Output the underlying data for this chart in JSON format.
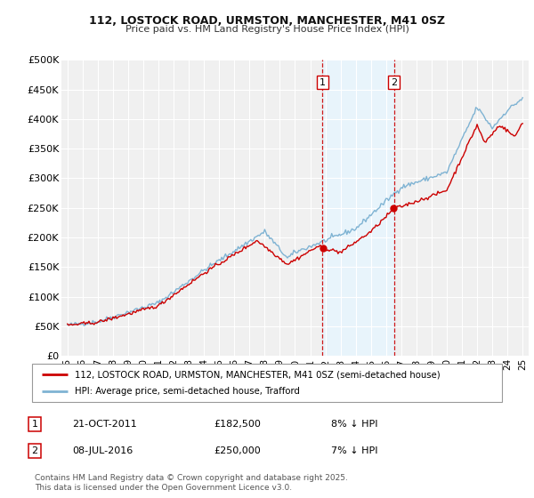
{
  "title_line1": "112, LOSTOCK ROAD, URMSTON, MANCHESTER, M41 0SZ",
  "title_line2": "Price paid vs. HM Land Registry's House Price Index (HPI)",
  "ylim": [
    0,
    500000
  ],
  "yticks": [
    0,
    50000,
    100000,
    150000,
    200000,
    250000,
    300000,
    350000,
    400000,
    450000,
    500000
  ],
  "ytick_labels": [
    "£0",
    "£50K",
    "£100K",
    "£150K",
    "£200K",
    "£250K",
    "£300K",
    "£350K",
    "£400K",
    "£450K",
    "£500K"
  ],
  "xlim_start": 1994.6,
  "xlim_end": 2025.4,
  "xticks": [
    1995,
    1996,
    1997,
    1998,
    1999,
    2000,
    2001,
    2002,
    2003,
    2004,
    2005,
    2006,
    2007,
    2008,
    2009,
    2010,
    2011,
    2012,
    2013,
    2014,
    2015,
    2016,
    2017,
    2018,
    2019,
    2020,
    2021,
    2022,
    2023,
    2024,
    2025
  ],
  "xtick_labels": [
    "95",
    "96",
    "97",
    "98",
    "99",
    "00",
    "01",
    "02",
    "03",
    "04",
    "05",
    "06",
    "07",
    "08",
    "09",
    "10",
    "11",
    "12",
    "13",
    "14",
    "15",
    "16",
    "17",
    "18",
    "19",
    "20",
    "21",
    "22",
    "23",
    "24",
    "25"
  ],
  "sale1_x": 2011.81,
  "sale1_y": 182500,
  "sale1_label": "1",
  "sale1_date": "21-OCT-2011",
  "sale1_price": "£182,500",
  "sale1_hpi": "8% ↓ HPI",
  "sale2_x": 2016.52,
  "sale2_y": 250000,
  "sale2_label": "2",
  "sale2_date": "08-JUL-2016",
  "sale2_price": "£250,000",
  "sale2_hpi": "7% ↓ HPI",
  "property_color": "#cc0000",
  "hpi_color": "#7fb3d3",
  "shading_color": "#e8f4fb",
  "legend_label_property": "112, LOSTOCK ROAD, URMSTON, MANCHESTER, M41 0SZ (semi-detached house)",
  "legend_label_hpi": "HPI: Average price, semi-detached house, Trafford",
  "footnote_line1": "Contains HM Land Registry data © Crown copyright and database right 2025.",
  "footnote_line2": "This data is licensed under the Open Government Licence v3.0.",
  "plot_bg_color": "#f0f0f0",
  "grid_color": "#ffffff"
}
